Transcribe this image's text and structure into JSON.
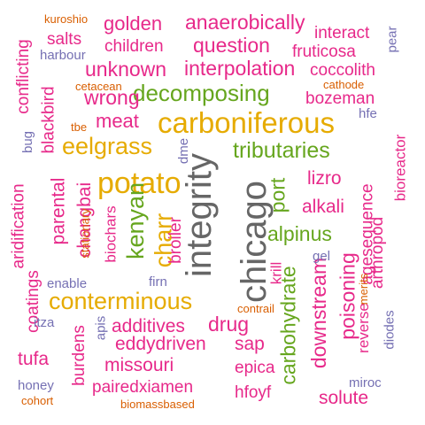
{
  "colors": {
    "magenta": "#e7298a",
    "green": "#66a61e",
    "gold": "#e6ab02",
    "purple": "#7570b3",
    "orange": "#d95f02",
    "gray": "#666666"
  },
  "words": [
    {
      "text": "integrity",
      "color": "gray",
      "orientation": "vertical"
    },
    {
      "text": "chicago",
      "color": "gray",
      "orientation": "vertical"
    },
    {
      "text": "carboniferous",
      "color": "gold",
      "orientation": "horizontal"
    },
    {
      "text": "potato",
      "color": "gold",
      "orientation": "horizontal"
    },
    {
      "text": "eelgrass",
      "color": "gold",
      "orientation": "horizontal"
    },
    {
      "text": "conterminous",
      "color": "gold",
      "orientation": "horizontal"
    },
    {
      "text": "charr",
      "color": "gold",
      "orientation": "vertical"
    },
    {
      "text": "decomposing",
      "color": "green",
      "orientation": "horizontal"
    },
    {
      "text": "tributaries",
      "color": "green",
      "orientation": "horizontal"
    },
    {
      "text": "alpinus",
      "color": "green",
      "orientation": "horizontal"
    },
    {
      "text": "port",
      "color": "green",
      "orientation": "vertical"
    },
    {
      "text": "carbohydrate",
      "color": "green",
      "orientation": "vertical"
    },
    {
      "text": "kenyan",
      "color": "green",
      "orientation": "vertical"
    },
    {
      "text": "question",
      "color": "magenta",
      "orientation": "horizontal"
    },
    {
      "text": "interpolation",
      "color": "magenta",
      "orientation": "horizontal"
    },
    {
      "text": "unknown",
      "color": "magenta",
      "orientation": "horizontal"
    },
    {
      "text": "anaerobically",
      "color": "magenta",
      "orientation": "horizontal"
    },
    {
      "text": "wrong",
      "color": "magenta",
      "orientation": "horizontal"
    },
    {
      "text": "meat",
      "color": "magenta",
      "orientation": "horizontal"
    },
    {
      "text": "golden",
      "color": "magenta",
      "orientation": "horizontal"
    },
    {
      "text": "salts",
      "color": "magenta",
      "orientation": "horizontal"
    },
    {
      "text": "children",
      "color": "magenta",
      "orientation": "horizontal"
    },
    {
      "text": "interact",
      "color": "magenta",
      "orientation": "horizontal"
    },
    {
      "text": "fruticosa",
      "color": "magenta",
      "orientation": "horizontal"
    },
    {
      "text": "coccolith",
      "color": "magenta",
      "orientation": "horizontal"
    },
    {
      "text": "bozeman",
      "color": "magenta",
      "orientation": "horizontal"
    },
    {
      "text": "lizro",
      "color": "magenta",
      "orientation": "horizontal"
    },
    {
      "text": "alkali",
      "color": "magenta",
      "orientation": "horizontal"
    },
    {
      "text": "additives",
      "color": "magenta",
      "orientation": "horizontal"
    },
    {
      "text": "drug",
      "color": "magenta",
      "orientation": "horizontal"
    },
    {
      "text": "eddydriven",
      "color": "magenta",
      "orientation": "horizontal"
    },
    {
      "text": "sap",
      "color": "magenta",
      "orientation": "horizontal"
    },
    {
      "text": "missouri",
      "color": "magenta",
      "orientation": "horizontal"
    },
    {
      "text": "epica",
      "color": "magenta",
      "orientation": "horizontal"
    },
    {
      "text": "pairedxiamen",
      "color": "magenta",
      "orientation": "horizontal"
    },
    {
      "text": "hfoyf",
      "color": "magenta",
      "orientation": "horizontal"
    },
    {
      "text": "solute",
      "color": "magenta",
      "orientation": "horizontal"
    },
    {
      "text": "tufa",
      "color": "magenta",
      "orientation": "horizontal"
    },
    {
      "text": "coatings",
      "color": "magenta",
      "orientation": "vertical"
    },
    {
      "text": "burdens",
      "color": "magenta",
      "orientation": "vertical"
    },
    {
      "text": "parental",
      "color": "magenta",
      "orientation": "vertical"
    },
    {
      "text": "changbai",
      "color": "magenta",
      "orientation": "vertical"
    },
    {
      "text": "aridification",
      "color": "magenta",
      "orientation": "vertical"
    },
    {
      "text": "conflicting",
      "color": "magenta",
      "orientation": "vertical"
    },
    {
      "text": "blackbird",
      "color": "magenta",
      "orientation": "vertical"
    },
    {
      "text": "biochars",
      "color": "magenta",
      "orientation": "vertical"
    },
    {
      "text": "broiler",
      "color": "magenta",
      "orientation": "vertical"
    },
    {
      "text": "downstream",
      "color": "magenta",
      "orientation": "vertical"
    },
    {
      "text": "poisoning",
      "color": "magenta",
      "orientation": "vertical"
    },
    {
      "text": "bioreactor",
      "color": "magenta",
      "orientation": "vertical"
    },
    {
      "text": "agesequence",
      "color": "magenta",
      "orientation": "vertical"
    },
    {
      "text": "arthropod",
      "color": "magenta",
      "orientation": "vertical"
    },
    {
      "text": "reverse",
      "color": "magenta",
      "orientation": "vertical"
    },
    {
      "text": "krill",
      "color": "magenta",
      "orientation": "vertical"
    },
    {
      "text": "harbour",
      "color": "purple",
      "orientation": "horizontal"
    },
    {
      "text": "enable",
      "color": "purple",
      "orientation": "horizontal"
    },
    {
      "text": "firn",
      "color": "purple",
      "orientation": "horizontal"
    },
    {
      "text": "gel",
      "color": "purple",
      "orientation": "horizontal"
    },
    {
      "text": "honey",
      "color": "purple",
      "orientation": "horizontal"
    },
    {
      "text": "miroc",
      "color": "purple",
      "orientation": "horizontal"
    },
    {
      "text": "hfe",
      "color": "purple",
      "orientation": "horizontal"
    },
    {
      "text": "itza",
      "color": "purple",
      "orientation": "horizontal"
    },
    {
      "text": "pear",
      "color": "purple",
      "orientation": "vertical"
    },
    {
      "text": "bug",
      "color": "purple",
      "orientation": "vertical"
    },
    {
      "text": "dme",
      "color": "purple",
      "orientation": "vertical"
    },
    {
      "text": "apis",
      "color": "purple",
      "orientation": "vertical"
    },
    {
      "text": "diodes",
      "color": "purple",
      "orientation": "vertical"
    },
    {
      "text": "kuroshio",
      "color": "orange",
      "orientation": "horizontal"
    },
    {
      "text": "cetacean",
      "color": "orange",
      "orientation": "horizontal"
    },
    {
      "text": "cathode",
      "color": "orange",
      "orientation": "horizontal"
    },
    {
      "text": "tbe",
      "color": "orange",
      "orientation": "horizontal"
    },
    {
      "text": "contrail",
      "color": "orange",
      "orientation": "horizontal"
    },
    {
      "text": "cohort",
      "color": "orange",
      "orientation": "horizontal"
    },
    {
      "text": "biomassbased",
      "color": "orange",
      "orientation": "horizontal"
    },
    {
      "text": "stationary",
      "color": "orange",
      "orientation": "vertical"
    },
    {
      "text": "merits",
      "color": "orange",
      "orientation": "vertical"
    }
  ]
}
